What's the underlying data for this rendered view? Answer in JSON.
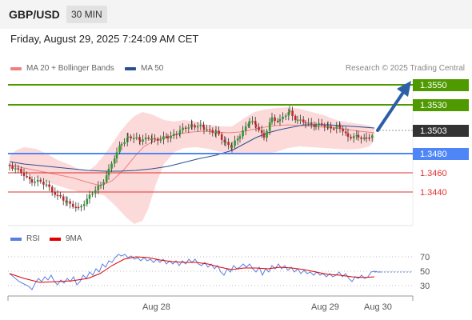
{
  "header": {
    "symbol": "GBP/USD",
    "timeframe": "30 MIN"
  },
  "datetime": "Friday, August 29, 2025 7:24:09 AM CET",
  "legend": {
    "ma20_label": "MA 20 + Bollinger Bands",
    "ma20_color": "#f08080",
    "ma50_label": "MA 50",
    "ma50_color": "#2c4f8f",
    "copyright": "Research © 2025 Trading Central"
  },
  "levels": {
    "resistance_2": "1.3550",
    "resistance_1": "1.3530",
    "last_price": "1.3503",
    "pivot": "1.3480",
    "support_1": "1.3460",
    "support_2": "1.3440",
    "resistance_color": "#4f9a00",
    "pivot_color": "#4f86f7",
    "support_color": "#e03030",
    "last_color": "#333333"
  },
  "rsi_legend": {
    "rsi_label": "RSI",
    "rsi_color": "#5b7fe0",
    "ma9_label": "9MA",
    "ma9_color": "#e00000"
  },
  "rsi_axis": [
    "70",
    "50",
    "30"
  ],
  "x_axis": [
    "Aug 28",
    "Aug 29",
    "Aug 30"
  ]
}
